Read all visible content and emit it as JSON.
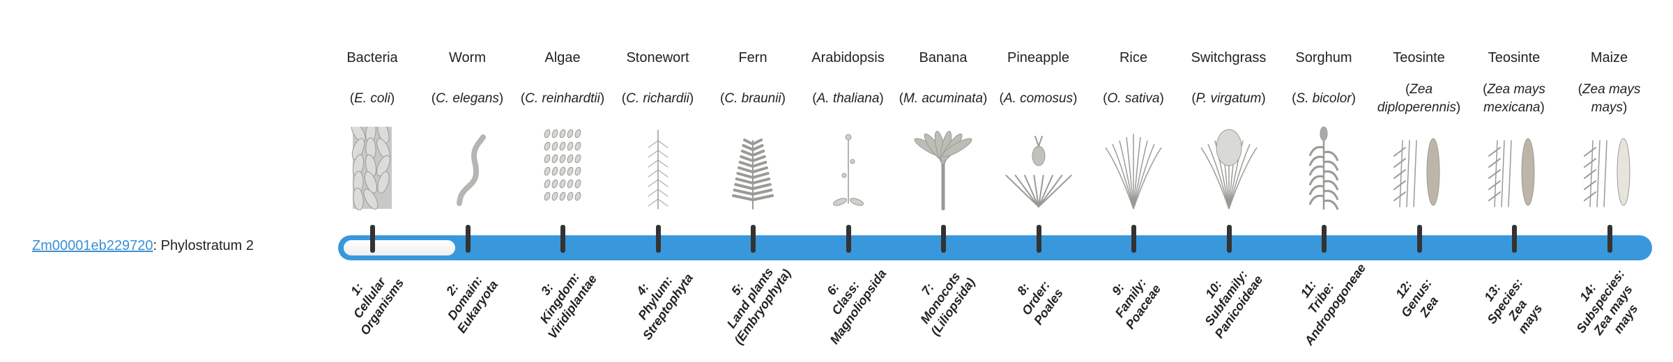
{
  "gene": {
    "id": "Zm00001eb229720",
    "suffix": ": Phylostratum 2"
  },
  "progress": {
    "current_stratum": 2,
    "total_strata": 14,
    "bar_color": "#3898db"
  },
  "organisms": [
    {
      "common": "Bacteria",
      "sci": "E. coli",
      "icon": "bacteria"
    },
    {
      "common": "Worm",
      "sci": "C. elegans",
      "icon": "worm"
    },
    {
      "common": "Algae",
      "sci": "C. reinhardtii",
      "icon": "algae"
    },
    {
      "common": "Stonewort",
      "sci": "C. richardii",
      "icon": "stonewort"
    },
    {
      "common": "Fern",
      "sci": "C. braunii",
      "icon": "fern"
    },
    {
      "common": "Arabidopsis",
      "sci": "A. thaliana",
      "icon": "arabidopsis"
    },
    {
      "common": "Banana",
      "sci": "M. acuminata",
      "icon": "banana"
    },
    {
      "common": "Pineapple",
      "sci": "A. comosus",
      "icon": "pineapple"
    },
    {
      "common": "Rice",
      "sci": "O. sativa",
      "icon": "rice"
    },
    {
      "common": "Switchgrass",
      "sci": "P. virgatum",
      "icon": "switchgrass"
    },
    {
      "common": "Sorghum",
      "sci": "S. bicolor",
      "icon": "sorghum"
    },
    {
      "common": "Teosinte",
      "sci": "Zea diploperennis",
      "icon": "teosinte"
    },
    {
      "common": "Teosinte",
      "sci": "Zea mays mexicana",
      "icon": "teosinte"
    },
    {
      "common": "Maize",
      "sci": "Zea mays mays",
      "icon": "maize"
    }
  ],
  "strata": [
    [
      "1:",
      "Cellular",
      "Organisms"
    ],
    [
      "2:",
      "Domain:",
      "Eukaryota"
    ],
    [
      "3:",
      "Kingdom:",
      "Viridiplantae"
    ],
    [
      "4:",
      "Phylum:",
      "Streptophyta"
    ],
    [
      "5:",
      "Land plants",
      "(Embryophyta)"
    ],
    [
      "6:",
      "Class:",
      "Magnoliopsida"
    ],
    [
      "7:",
      "Monocots",
      "(Liliopsida)"
    ],
    [
      "8:",
      "Order:",
      "Poales"
    ],
    [
      "9:",
      "Family:",
      "Poaceae"
    ],
    [
      "10:",
      "Subfamily:",
      "Panicoideae"
    ],
    [
      "11:",
      "Tribe:",
      "Andropogoneae"
    ],
    [
      "12:",
      "Genus:",
      "Zea"
    ],
    [
      "13:",
      "Species:",
      "Zea",
      "mays"
    ],
    [
      "14:",
      "Subspecies:",
      "Zea mays",
      "mays"
    ]
  ]
}
